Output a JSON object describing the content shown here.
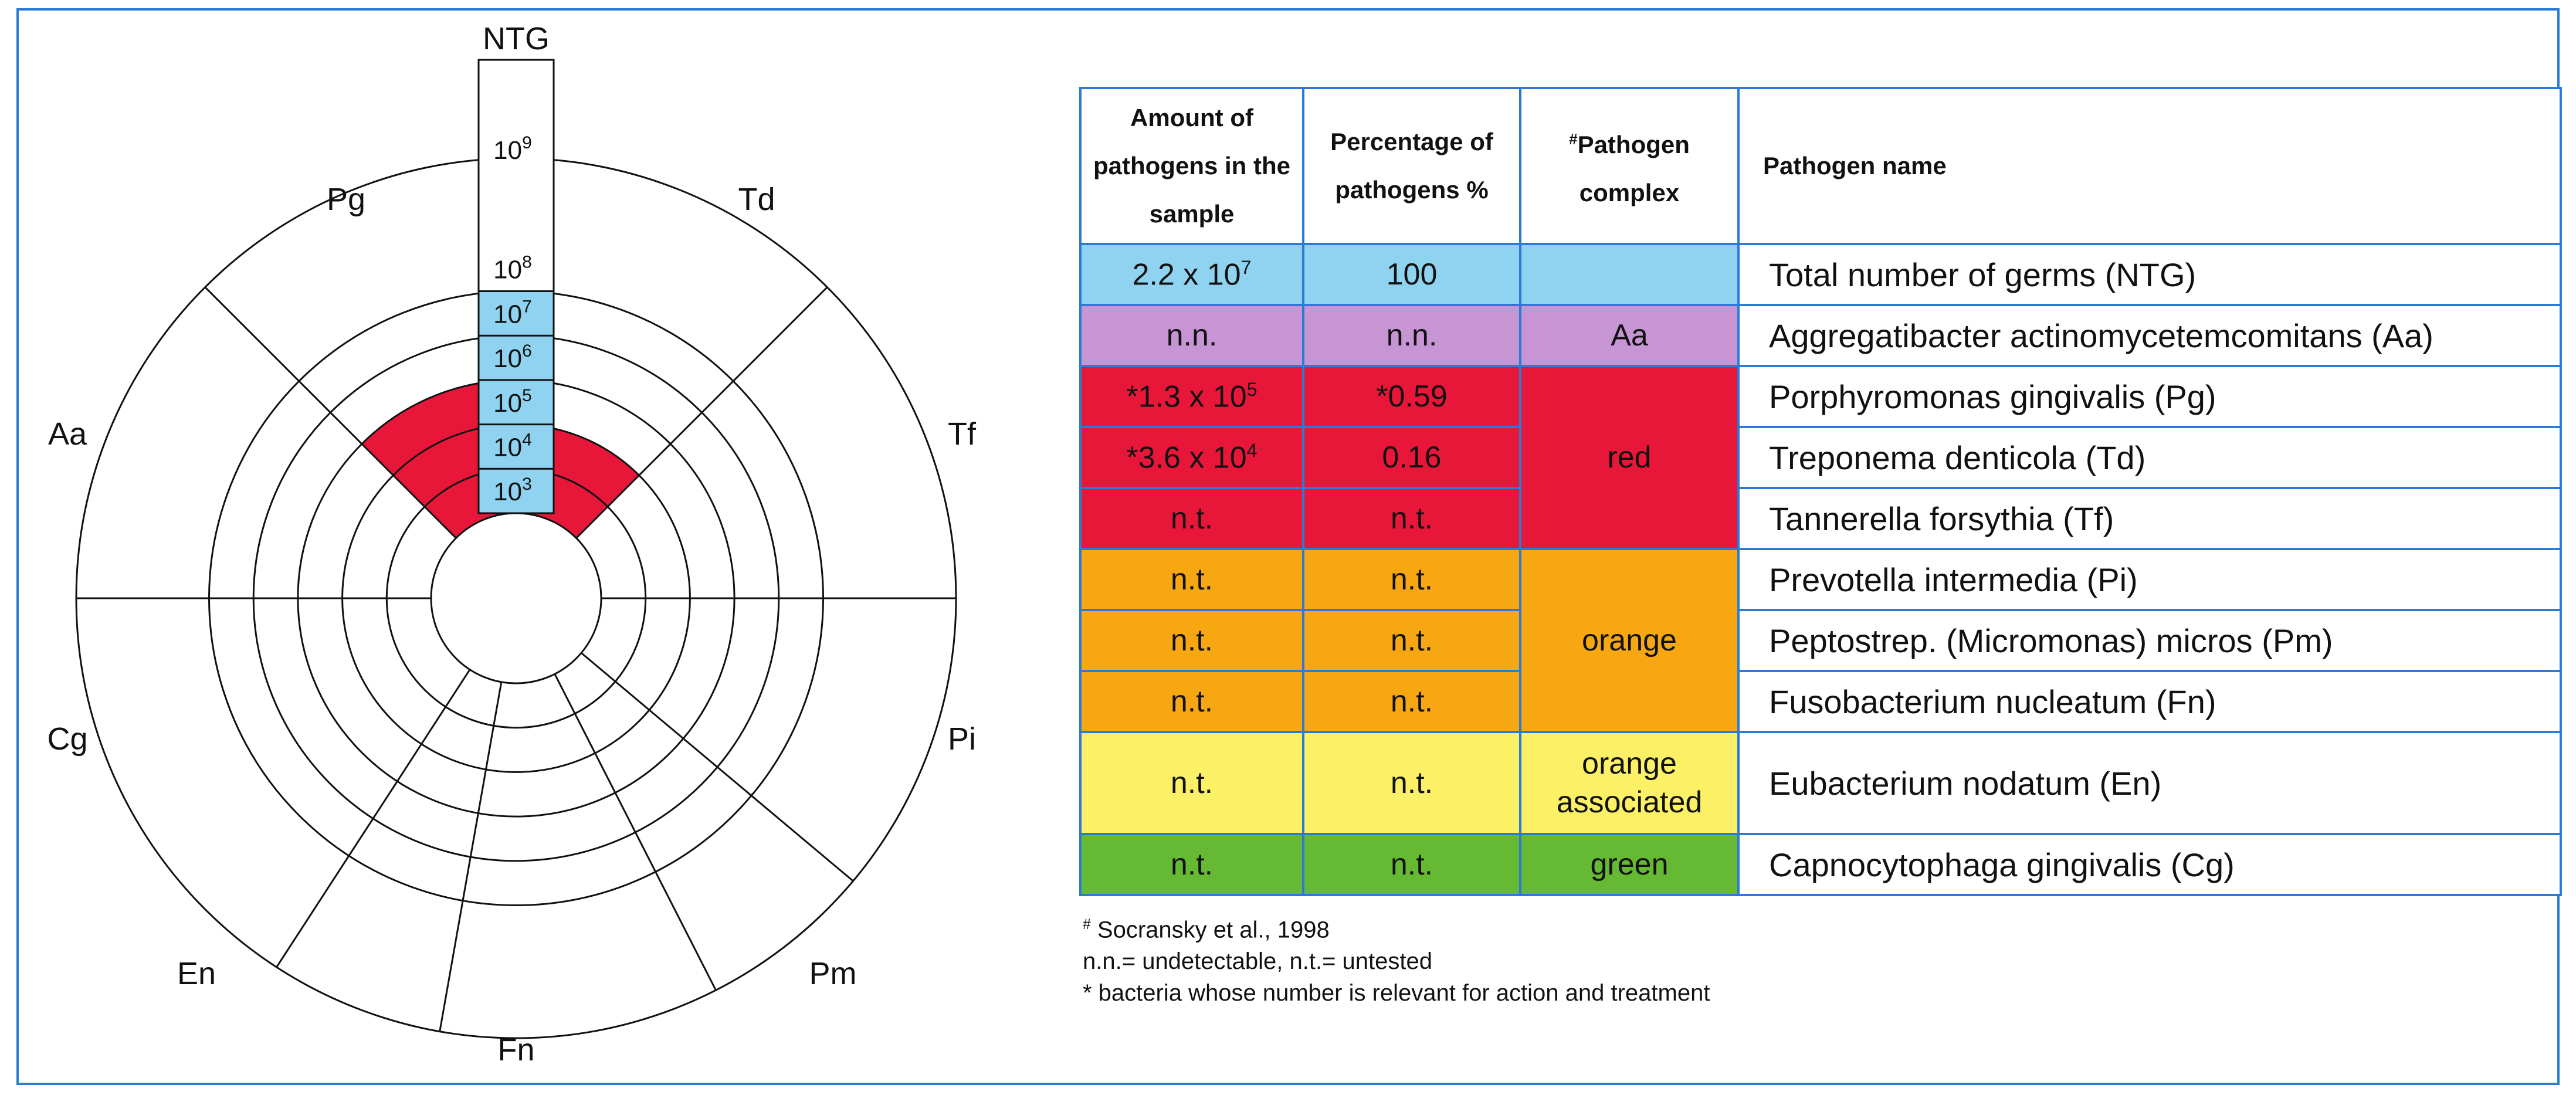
{
  "chart_data": {
    "type": "radial",
    "ring_scale": [
      "10^3",
      "10^4",
      "10^5",
      "10^6",
      "10^7",
      "10^8",
      "10^9"
    ],
    "ring_exponents": [
      3,
      4,
      5,
      6,
      7,
      8,
      9
    ],
    "top_label": "NTG",
    "sector_labels": [
      "Pg",
      "Td",
      "Tf",
      "Pi",
      "Pm",
      "Fn",
      "En",
      "Cg",
      "Aa"
    ],
    "ntg_fill_exponent": 7,
    "highlighted": [
      {
        "sector": "Pg",
        "exponent": 5,
        "color": "#e8173a"
      },
      {
        "sector": "Td",
        "exponent": 4,
        "color": "#e8173a"
      }
    ],
    "ntg_color": "#8fd3f0"
  },
  "table": {
    "headers": {
      "amount": "Amount of pathogens in the sample",
      "percentage": "Percentage of pathogens %",
      "complex_mark": "#",
      "complex": "Pathogen complex",
      "name": "Pathogen name"
    },
    "rows": [
      {
        "amount_base": "2.2 x 10",
        "amount_exp": "7",
        "percent": "100",
        "complex": "",
        "name": "Total number of germs (NTG)",
        "color": "#8fd3f0"
      },
      {
        "amount_base": "n.n.",
        "amount_exp": "",
        "percent": "n.n.",
        "complex": "Aa",
        "name": "Aggregatibacter actinomycetemcomitans (Aa)",
        "color": "#c795d4"
      },
      {
        "amount_base": "*1.3 x 10",
        "amount_exp": "5",
        "percent": "*0.59",
        "complex": "red",
        "name": "Porphyromonas gingivalis (Pg)",
        "color": "#e8173a"
      },
      {
        "amount_base": "*3.6 x 10",
        "amount_exp": "4",
        "percent": "0.16",
        "complex": "",
        "name": "Treponema denticola (Td)",
        "color": "#e8173a"
      },
      {
        "amount_base": "n.t.",
        "amount_exp": "",
        "percent": "n.t.",
        "complex": "",
        "name": "Tannerella forsythia (Tf)",
        "color": "#e8173a"
      },
      {
        "amount_base": "n.t.",
        "amount_exp": "",
        "percent": "n.t.",
        "complex": "orange",
        "name": "Prevotella intermedia (Pi)",
        "color": "#f7a712"
      },
      {
        "amount_base": "n.t.",
        "amount_exp": "",
        "percent": "n.t.",
        "complex": "",
        "name": "Peptostrep. (Micromonas) micros (Pm)",
        "color": "#f7a712"
      },
      {
        "amount_base": "n.t.",
        "amount_exp": "",
        "percent": "n.t.",
        "complex": "",
        "name": "Fusobacterium nucleatum (Fn)",
        "color": "#f7a712"
      },
      {
        "amount_base": "n.t.",
        "amount_exp": "",
        "percent": "n.t.",
        "complex": "orange associated",
        "name": "Eubacterium nodatum (En)",
        "color": "#fbf066"
      },
      {
        "amount_base": "n.t.",
        "amount_exp": "",
        "percent": "n.t.",
        "complex": "green",
        "name": "Capnocytophaga gingivalis (Cg)",
        "color": "#66b932"
      }
    ]
  },
  "notes": {
    "ref_mark": "#",
    "ref": " Socransky et al., 1998",
    "abbrev": "n.n.= undetectable, n.t.= untested",
    "star": "* bacteria whose number is relevant for action and treatment"
  }
}
